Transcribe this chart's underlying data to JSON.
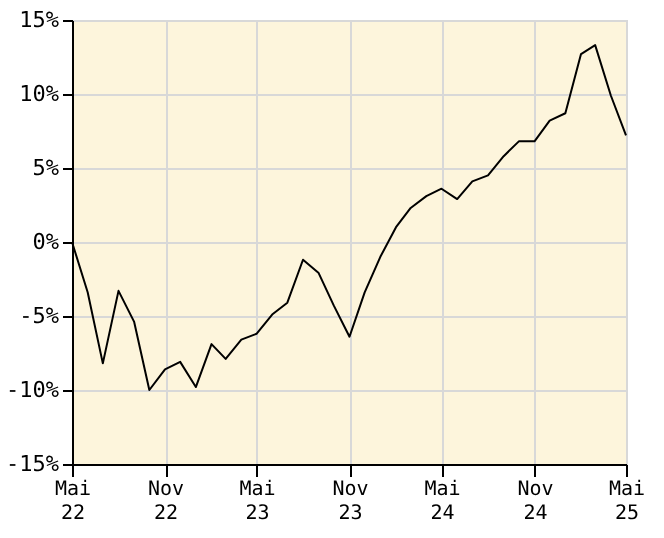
{
  "chart_data": {
    "type": "line",
    "x": [
      "2022-05",
      "2022-06",
      "2022-07",
      "2022-08",
      "2022-09",
      "2022-10",
      "2022-11",
      "2022-12",
      "2023-01",
      "2023-02",
      "2023-03",
      "2023-04",
      "2023-05",
      "2023-06",
      "2023-07",
      "2023-08",
      "2023-09",
      "2023-10",
      "2023-11",
      "2023-12",
      "2024-01",
      "2024-02",
      "2024-03",
      "2024-04",
      "2024-05",
      "2024-06",
      "2024-07",
      "2024-08",
      "2024-09",
      "2024-10",
      "2024-11",
      "2024-12",
      "2025-01",
      "2025-02",
      "2025-03",
      "2025-04",
      "2025-05"
    ],
    "series": [
      {
        "color": "#000000",
        "values": [
          0,
          -3.4,
          -8.2,
          -3.3,
          -5.4,
          -10.0,
          -8.6,
          -8.1,
          -9.8,
          -6.9,
          -7.9,
          -6.6,
          -6.2,
          -4.9,
          -4.1,
          -1.2,
          -2.1,
          -4.3,
          -6.4,
          -3.4,
          -1.0,
          1.0,
          2.3,
          3.1,
          3.6,
          2.9,
          4.1,
          4.5,
          5.8,
          6.8,
          6.8,
          8.2,
          8.7,
          12.7,
          13.3,
          9.9,
          7.2
        ]
      }
    ],
    "xlim": [
      "2022-05",
      "2025-05"
    ],
    "xticks": [
      {
        "value": "2022-05",
        "label": "Mai 22"
      },
      {
        "value": "2022-11",
        "label": "Nov 22"
      },
      {
        "value": "2023-05",
        "label": "Mai 23"
      },
      {
        "value": "2023-11",
        "label": "Nov 23"
      },
      {
        "value": "2024-05",
        "label": "Mai 24"
      },
      {
        "value": "2024-11",
        "label": "Nov 24"
      },
      {
        "value": "2025-05",
        "label": "Mai 25"
      }
    ],
    "ylim": [
      -15,
      15
    ],
    "yticks": [
      {
        "value": -15,
        "label": "-15%"
      },
      {
        "value": -10,
        "label": "-10%"
      },
      {
        "value": -5,
        "label": "-5%"
      },
      {
        "value": 0,
        "label": "0%"
      },
      {
        "value": 5,
        "label": "5%"
      },
      {
        "value": 10,
        "label": "10%"
      },
      {
        "value": 15,
        "label": "15%"
      }
    ],
    "grid": true,
    "marker": "none",
    "line_style": "solid"
  }
}
